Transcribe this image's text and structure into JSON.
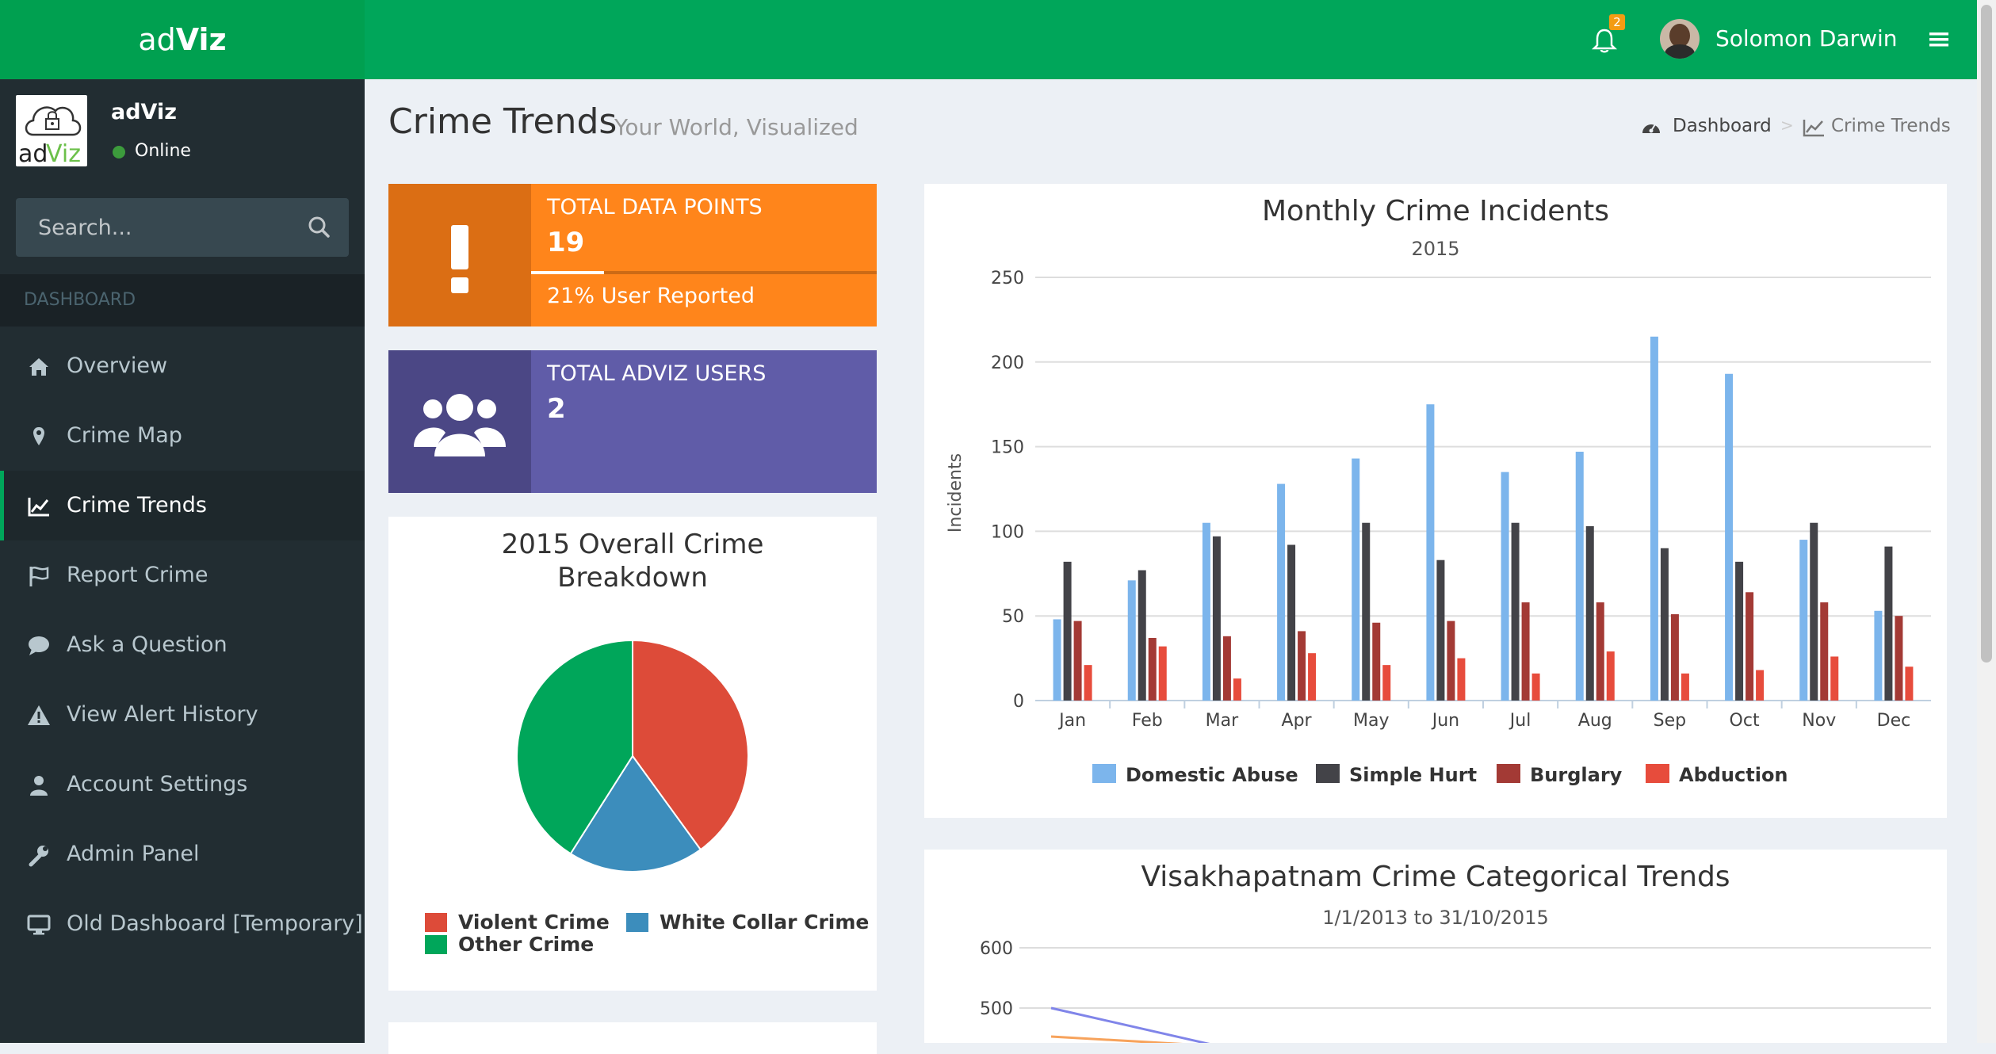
{
  "app": {
    "logo_prefix": "ad",
    "logo_suffix": "Viz"
  },
  "topbar": {
    "notification_count": "2",
    "user_name": "Solomon Darwin"
  },
  "sidebar": {
    "user_name": "adViz",
    "user_status": "Online",
    "search_placeholder": "Search...",
    "section_header": "DASHBOARD",
    "items": [
      {
        "label": "Overview",
        "icon": "home-icon"
      },
      {
        "label": "Crime Map",
        "icon": "map-marker-icon"
      },
      {
        "label": "Crime Trends",
        "icon": "line-chart-icon",
        "active": true
      },
      {
        "label": "Report Crime",
        "icon": "flag-icon"
      },
      {
        "label": "Ask a Question",
        "icon": "comment-icon"
      },
      {
        "label": "View Alert History",
        "icon": "warning-icon"
      },
      {
        "label": "Account Settings",
        "icon": "user-icon"
      },
      {
        "label": "Admin Panel",
        "icon": "wrench-icon"
      },
      {
        "label": "Old Dashboard [Temporary]",
        "icon": "desktop-icon"
      }
    ]
  },
  "content_header": {
    "title": "Crime Trends",
    "subtitle": "Your World, Visualized",
    "breadcrumb": [
      "Dashboard",
      "Crime Trends"
    ]
  },
  "info_boxes": [
    {
      "label": "TOTAL DATA POINTS",
      "value": "19",
      "progress": 0.21,
      "progress_text": "21% User Reported",
      "color": "#f39c12",
      "icon": "exclamation-icon"
    },
    {
      "label": "TOTAL ADVIZ USERS",
      "value": "2",
      "color": "#605ca8",
      "icon": "users-icon"
    }
  ],
  "colors": {
    "brand_green": "#00a65a",
    "sidebar_bg": "#222d32",
    "orange": "#ff851b",
    "purple": "#605ca8"
  },
  "chart_data": [
    {
      "type": "pie",
      "title": "2015 Overall Crime Breakdown",
      "slices": [
        {
          "name": "Violent Crime",
          "value": 40,
          "color": "#dd4b39"
        },
        {
          "name": "White Collar Crime",
          "value": 19,
          "color": "#3c8dbc"
        },
        {
          "name": "Other Crime",
          "value": 41,
          "color": "#00a65a"
        }
      ]
    },
    {
      "type": "bar",
      "title": "Monthly Crime Incidents",
      "subtitle": "2015",
      "ylabel": "Incidents",
      "ylim": [
        0,
        250
      ],
      "yticks": [
        0,
        50,
        100,
        150,
        200,
        250
      ],
      "grid": true,
      "legend": "bottom",
      "categories": [
        "Jan",
        "Feb",
        "Mar",
        "Apr",
        "May",
        "Jun",
        "Jul",
        "Aug",
        "Sep",
        "Oct",
        "Nov",
        "Dec"
      ],
      "series": [
        {
          "name": "Domestic Abuse",
          "color": "#7cb5ec",
          "values": [
            48,
            71,
            105,
            128,
            143,
            175,
            135,
            147,
            215,
            193,
            95,
            53
          ]
        },
        {
          "name": "Simple Hurt",
          "color": "#434348",
          "values": [
            82,
            77,
            97,
            92,
            105,
            83,
            105,
            103,
            90,
            82,
            105,
            91
          ]
        },
        {
          "name": "Burglary",
          "color": "#a33a35",
          "values": [
            47,
            37,
            38,
            41,
            46,
            47,
            58,
            58,
            51,
            64,
            58,
            50
          ]
        },
        {
          "name": "Abduction",
          "color": "#e74c3c",
          "values": [
            21,
            32,
            13,
            28,
            21,
            25,
            16,
            29,
            16,
            18,
            26,
            20
          ]
        }
      ]
    },
    {
      "type": "line",
      "title": "Visakhapatnam Crime Categorical Trends",
      "subtitle": "1/1/2013 to 31/10/2015",
      "yticks": [
        500,
        600
      ],
      "grid": true
    }
  ]
}
